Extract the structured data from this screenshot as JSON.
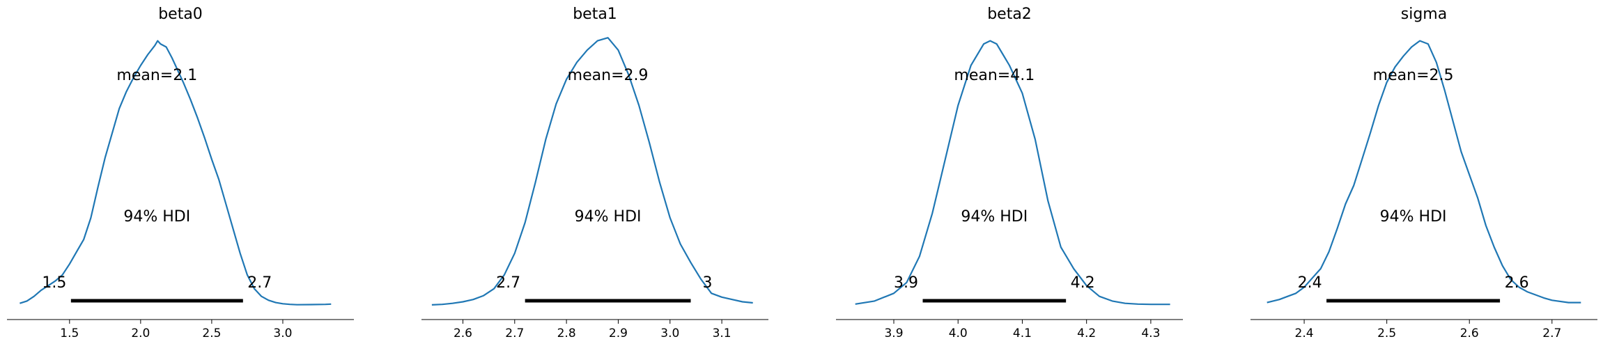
{
  "figure": {
    "kind": "ArviZ posterior plot",
    "line_color": "#1f77b4",
    "hdi_color": "#000000",
    "axis_color": "#000000"
  },
  "chart_data": [
    {
      "type": "line",
      "title": "beta0",
      "xlabel": "",
      "ylabel": "",
      "mean_label": "mean=2.1",
      "hdi_label": "94% HDI",
      "hdi": [
        1.51,
        2.72
      ],
      "hdi_labels": [
        "1.5",
        "2.7"
      ],
      "xlim": [
        1.06,
        3.5
      ],
      "xticks": [
        1.5,
        2.0,
        2.5,
        3.0
      ],
      "xtick_labels": [
        "1.5",
        "2.0",
        "2.5",
        "3.0"
      ],
      "x": [
        1.15,
        1.2,
        1.25,
        1.3,
        1.35,
        1.4,
        1.45,
        1.5,
        1.55,
        1.6,
        1.65,
        1.7,
        1.75,
        1.8,
        1.85,
        1.9,
        1.95,
        2.0,
        2.05,
        2.1,
        2.12,
        2.14,
        2.18,
        2.22,
        2.3,
        2.35,
        2.4,
        2.45,
        2.5,
        2.55,
        2.6,
        2.65,
        2.7,
        2.75,
        2.8,
        2.85,
        2.9,
        2.95,
        3.0,
        3.05,
        3.1,
        3.2,
        3.3,
        3.34
      ],
      "y": [
        0.015,
        0.03,
        0.06,
        0.1,
        0.13,
        0.16,
        0.2,
        0.27,
        0.35,
        0.43,
        0.57,
        0.77,
        0.96,
        1.12,
        1.28,
        1.39,
        1.48,
        1.56,
        1.63,
        1.69,
        1.72,
        1.7,
        1.68,
        1.61,
        1.45,
        1.34,
        1.22,
        1.09,
        0.95,
        0.82,
        0.66,
        0.5,
        0.34,
        0.2,
        0.11,
        0.06,
        0.035,
        0.02,
        0.012,
        0.008,
        0.006,
        0.007,
        0.008,
        0.01
      ]
    },
    {
      "type": "line",
      "title": "beta1",
      "xlabel": "",
      "ylabel": "",
      "mean_label": "mean=2.9",
      "hdi_label": "94% HDI",
      "hdi": [
        2.72,
        3.04
      ],
      "hdi_labels": [
        "2.7",
        "3"
      ],
      "xlim": [
        2.52,
        3.19
      ],
      "xticks": [
        2.6,
        2.7,
        2.8,
        2.9,
        3.0,
        3.1
      ],
      "xtick_labels": [
        "2.6",
        "2.7",
        "2.8",
        "2.9",
        "3.0",
        "3.1"
      ],
      "x": [
        2.54,
        2.56,
        2.58,
        2.6,
        2.62,
        2.64,
        2.66,
        2.68,
        2.7,
        2.72,
        2.74,
        2.76,
        2.78,
        2.8,
        2.82,
        2.84,
        2.86,
        2.88,
        2.9,
        2.92,
        2.94,
        2.96,
        2.98,
        3.0,
        3.02,
        3.04,
        3.06,
        3.08,
        3.1,
        3.12,
        3.14,
        3.16
      ],
      "y": [
        0.005,
        0.008,
        0.015,
        0.025,
        0.04,
        0.065,
        0.11,
        0.2,
        0.34,
        0.54,
        0.8,
        1.08,
        1.31,
        1.47,
        1.58,
        1.66,
        1.72,
        1.74,
        1.66,
        1.5,
        1.3,
        1.06,
        0.8,
        0.57,
        0.4,
        0.28,
        0.17,
        0.08,
        0.055,
        0.04,
        0.025,
        0.018
      ]
    },
    {
      "type": "line",
      "title": "beta2",
      "xlabel": "",
      "ylabel": "",
      "mean_label": "mean=4.1",
      "hdi_label": "94% HDI",
      "hdi": [
        3.945,
        4.168
      ],
      "hdi_labels": [
        "3.9",
        "4.2"
      ],
      "xlim": [
        3.81,
        4.35
      ],
      "xticks": [
        3.9,
        4.0,
        4.1,
        4.2,
        4.3
      ],
      "xtick_labels": [
        "3.9",
        "4.0",
        "4.1",
        "4.2",
        "4.3"
      ],
      "x": [
        3.84,
        3.87,
        3.9,
        3.92,
        3.94,
        3.96,
        3.98,
        4.0,
        4.02,
        4.04,
        4.05,
        4.06,
        4.07,
        4.08,
        4.1,
        4.12,
        4.14,
        4.16,
        4.18,
        4.2,
        4.22,
        4.24,
        4.26,
        4.28,
        4.3,
        4.33
      ],
      "y": [
        0.01,
        0.03,
        0.08,
        0.15,
        0.32,
        0.6,
        0.95,
        1.3,
        1.56,
        1.7,
        1.72,
        1.7,
        1.63,
        1.56,
        1.38,
        1.08,
        0.68,
        0.38,
        0.24,
        0.13,
        0.06,
        0.03,
        0.015,
        0.01,
        0.008,
        0.008
      ]
    },
    {
      "type": "line",
      "title": "sigma",
      "xlabel": "",
      "ylabel": "",
      "mean_label": "mean=2.5",
      "hdi_label": "94% HDI",
      "hdi": [
        2.427,
        2.637
      ],
      "hdi_labels": [
        "2.4",
        "2.6"
      ],
      "xlim": [
        2.335,
        2.755
      ],
      "xticks": [
        2.4,
        2.5,
        2.6,
        2.7
      ],
      "xtick_labels": [
        "2.4",
        "2.5",
        "2.6",
        "2.7"
      ],
      "x": [
        2.355,
        2.37,
        2.38,
        2.39,
        2.4,
        2.41,
        2.42,
        2.43,
        2.44,
        2.45,
        2.46,
        2.47,
        2.48,
        2.49,
        2.5,
        2.51,
        2.52,
        2.53,
        2.54,
        2.55,
        2.56,
        2.57,
        2.58,
        2.59,
        2.6,
        2.61,
        2.62,
        2.63,
        2.64,
        2.65,
        2.66,
        2.67,
        2.68,
        2.69,
        2.7,
        2.72,
        2.735
      ],
      "y": [
        0.02,
        0.04,
        0.06,
        0.08,
        0.12,
        0.18,
        0.24,
        0.35,
        0.5,
        0.66,
        0.78,
        0.95,
        1.12,
        1.3,
        1.45,
        1.55,
        1.62,
        1.68,
        1.72,
        1.7,
        1.58,
        1.4,
        1.2,
        1.0,
        0.85,
        0.7,
        0.52,
        0.38,
        0.26,
        0.17,
        0.12,
        0.09,
        0.07,
        0.05,
        0.035,
        0.02,
        0.02
      ]
    }
  ]
}
